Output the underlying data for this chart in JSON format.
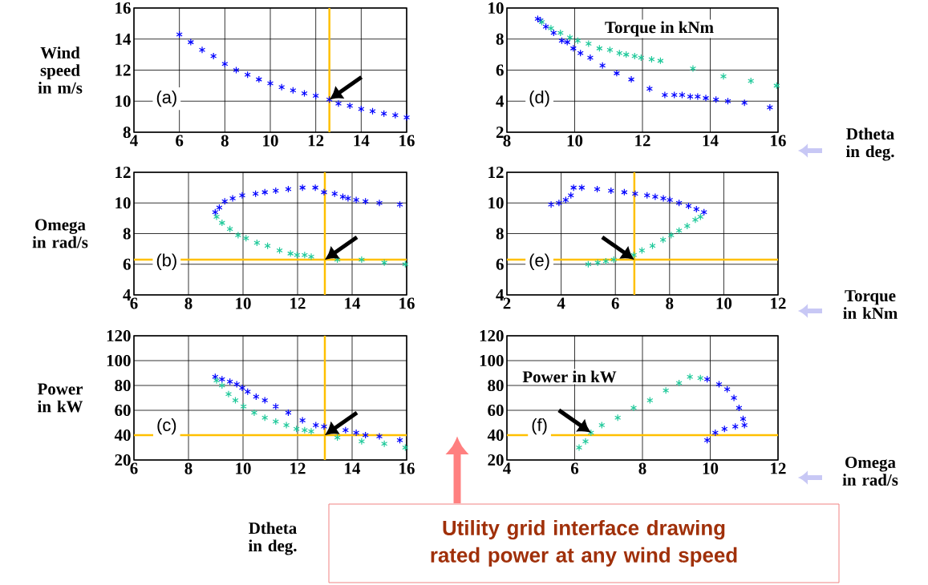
{
  "chart_data": [
    {
      "type": "scatter",
      "annotations": [
        "(a)"
      ],
      "ylabel": "Wind speed in m/s",
      "xlim": [
        4,
        16
      ],
      "ylim": [
        8,
        16
      ],
      "xticks": [
        4,
        6,
        8,
        10,
        12,
        14,
        16
      ],
      "yticks": [
        8,
        10,
        12,
        14,
        16
      ],
      "grid": true,
      "marker": "cross",
      "series": [
        {
          "color": "#0000ff",
          "x": [
            6,
            6.5,
            7,
            7.5,
            8,
            8.5,
            9,
            9.5,
            10,
            10.5,
            11,
            11.5,
            12,
            12.6,
            13,
            13.5,
            14,
            14.5,
            15,
            15.5,
            16
          ],
          "values": [
            14.3,
            13.8,
            13.3,
            12.9,
            12.4,
            12.0,
            11.7,
            11.4,
            11.15,
            10.9,
            10.7,
            10.5,
            10.35,
            10.1,
            9.85,
            9.7,
            9.5,
            9.35,
            9.2,
            9.1,
            8.95
          ]
        }
      ],
      "ref_lines": [
        {
          "axis": "x",
          "value": 12.6,
          "color": "#ffc000"
        }
      ]
    },
    {
      "type": "scatter",
      "annotations": [
        "(b)"
      ],
      "ylabel": "Omega in rad/s",
      "xlim": [
        6,
        16
      ],
      "ylim": [
        4,
        12
      ],
      "xticks": [
        6,
        8,
        10,
        12,
        14,
        16
      ],
      "yticks": [
        4,
        6,
        8,
        10,
        12
      ],
      "grid": true,
      "marker": "cross",
      "series": [
        {
          "color": "#0000ff",
          "x": [
            8.98,
            9.13,
            9.33,
            9.62,
            9.97,
            10.46,
            10.8,
            11.2,
            11.66,
            12.18,
            12.65,
            12.97,
            13.36,
            13.66,
            13.85,
            14.15,
            14.49,
            15.0,
            15.75
          ],
          "values": [
            9.4,
            9.7,
            10.1,
            10.3,
            10.5,
            10.6,
            10.7,
            10.8,
            10.9,
            11.0,
            11.0,
            10.7,
            10.6,
            10.4,
            10.3,
            10.2,
            10.1,
            10.0,
            9.9
          ]
        },
        {
          "color": "#1fc99a",
          "x": [
            9.03,
            9.23,
            9.52,
            9.82,
            10.11,
            10.51,
            10.9,
            11.34,
            11.74,
            11.98,
            12.26,
            12.5,
            13.46,
            14.35,
            15.18,
            15.95
          ],
          "values": [
            9.1,
            8.7,
            8.3,
            7.9,
            7.7,
            7.4,
            7.2,
            6.9,
            6.7,
            6.6,
            6.6,
            6.5,
            6.3,
            6.3,
            6.1,
            6.0
          ]
        }
      ],
      "ref_lines": [
        {
          "axis": "x",
          "value": 13,
          "color": "#ffc000"
        },
        {
          "axis": "y",
          "value": 6.3,
          "color": "#ffc000"
        }
      ]
    },
    {
      "type": "scatter",
      "annotations": [
        "(c)"
      ],
      "ylabel": "Power in kW",
      "xlabel": "Dtheta in deg.",
      "xlim": [
        6,
        16
      ],
      "ylim": [
        20,
        120
      ],
      "xticks": [
        6,
        8,
        10,
        12,
        14,
        16
      ],
      "yticks": [
        20,
        40,
        60,
        80,
        100,
        120
      ],
      "grid": true,
      "marker": "cross",
      "series": [
        {
          "color": "#0000ff",
          "x": [
            8.98,
            9.23,
            9.52,
            9.77,
            9.97,
            10.17,
            10.48,
            10.8,
            11.2,
            11.66,
            12.18,
            12.67,
            12.97,
            13.26,
            13.76,
            14.15,
            14.49,
            15.0,
            15.75
          ],
          "values": [
            87,
            85,
            83,
            81,
            78,
            75,
            71,
            68,
            63,
            58,
            52,
            48,
            47,
            null,
            44,
            42,
            40,
            39,
            36
          ]
        },
        {
          "color": "#1fc99a",
          "x": [
            9.03,
            9.23,
            9.47,
            9.72,
            10.02,
            10.41,
            10.8,
            11.2,
            11.59,
            11.96,
            12.26,
            12.5,
            13.46,
            14.35,
            15.18,
            15.95
          ],
          "values": [
            84,
            80,
            73,
            68,
            63,
            58,
            54,
            51,
            48,
            45,
            44,
            43,
            38,
            35,
            33,
            30
          ]
        }
      ],
      "ref_lines": [
        {
          "axis": "x",
          "value": 13,
          "color": "#ffc000"
        },
        {
          "axis": "y",
          "value": 40,
          "color": "#ffc000"
        }
      ]
    },
    {
      "type": "scatter",
      "annotations": [
        "(d)"
      ],
      "ylabel": "Torque in kNm",
      "xlabel": "Dtheta in deg.",
      "xlim": [
        8,
        16
      ],
      "ylim": [
        2,
        10
      ],
      "xticks": [
        8,
        10,
        12,
        14,
        16
      ],
      "yticks": [
        2,
        4,
        6,
        8,
        10
      ],
      "grid": true,
      "marker": "cross",
      "series": [
        {
          "color": "#0000ff",
          "x": [
            8.91,
            8.99,
            9.15,
            9.38,
            9.62,
            9.78,
            9.96,
            10.17,
            10.46,
            10.82,
            11.24,
            11.67,
            12.21,
            12.66,
            12.94,
            13.17,
            13.41,
            13.63,
            13.87,
            14.17,
            14.52,
            15.01,
            15.76
          ],
          "values": [
            9.3,
            9.2,
            8.8,
            8.4,
            7.9,
            7.8,
            7.4,
            7.1,
            6.8,
            6.3,
            5.8,
            5.4,
            4.8,
            4.4,
            4.4,
            4.4,
            4.3,
            4.3,
            4.2,
            4.1,
            4.0,
            3.9,
            3.6
          ]
        },
        {
          "color": "#1fc99a",
          "x": [
            9.03,
            9.3,
            9.58,
            9.86,
            10.09,
            10.41,
            10.73,
            11.04,
            11.32,
            11.52,
            11.77,
            11.96,
            12.27,
            12.53,
            13.49,
            14.39,
            15.2,
            15.96
          ],
          "values": [
            9.1,
            8.7,
            8.4,
            8.1,
            7.9,
            7.7,
            7.4,
            7.3,
            7.1,
            7.0,
            6.9,
            6.8,
            6.7,
            6.6,
            6.1,
            5.6,
            5.3,
            5.0
          ]
        }
      ]
    },
    {
      "type": "scatter",
      "annotations": [
        "(e)"
      ],
      "xlabel": "Torque in kNm",
      "xlim": [
        2,
        12
      ],
      "ylim": [
        4,
        12
      ],
      "xticks": [
        2,
        4,
        6,
        8,
        10,
        12
      ],
      "yticks": [
        4,
        6,
        8,
        10,
        12
      ],
      "grid": true,
      "marker": "cross",
      "series": [
        {
          "color": "#0000ff",
          "x": [
            3.63,
            3.92,
            4.17,
            4.36,
            4.46,
            4.76,
            5.33,
            5.84,
            6.33,
            6.73,
            7.17,
            7.47,
            7.77,
            8.01,
            8.35,
            8.7,
            8.99,
            9.27
          ],
          "values": [
            9.9,
            10.0,
            10.2,
            10.5,
            11.0,
            11.0,
            10.9,
            10.8,
            10.7,
            10.6,
            10.5,
            10.4,
            10.3,
            10.2,
            10.0,
            9.8,
            9.6,
            9.4
          ]
        },
        {
          "color": "#1fc99a",
          "x": [
            9.14,
            8.95,
            8.65,
            8.35,
            8.06,
            7.76,
            7.37,
            6.98,
            6.68,
            6.29,
            5.94,
            5.65,
            5.35,
            5.0
          ],
          "values": [
            9.1,
            8.9,
            8.5,
            8.2,
            7.9,
            7.6,
            7.2,
            6.9,
            6.6,
            null,
            6.3,
            6.2,
            6.1,
            6.0
          ]
        }
      ],
      "ref_lines": [
        {
          "axis": "x",
          "value": 6.7,
          "color": "#ffc000"
        },
        {
          "axis": "y",
          "value": 6.3,
          "color": "#ffc000"
        }
      ]
    },
    {
      "type": "scatter",
      "annotations": [
        "(f)",
        "Utility grid interface drawing rated power at any wind speed"
      ],
      "ylabel": "Power in kW",
      "xlabel": "Omega in rad/s",
      "xlim": [
        4,
        12
      ],
      "ylim": [
        20,
        120
      ],
      "xticks": [
        4,
        6,
        8,
        10,
        12
      ],
      "yticks": [
        20,
        40,
        60,
        80,
        100,
        120
      ],
      "grid": true,
      "marker": "cross",
      "series": [
        {
          "color": "#1fc99a",
          "x": [
            6.13,
            6.32,
            6.48,
            6.8,
            7.27,
            7.74,
            8.22,
            8.69,
            9.08,
            9.4,
            9.71
          ],
          "values": [
            30,
            35,
            42,
            48,
            54,
            62,
            68,
            76,
            82,
            87,
            86
          ]
        },
        {
          "color": "#0000ff",
          "x": [
            9.91,
            10.26,
            10.5,
            10.7,
            10.85,
            10.97,
            11.01,
            10.74,
            10.42,
            10.15,
            9.91
          ],
          "values": [
            85,
            81,
            77,
            70,
            62,
            53,
            48,
            47,
            45,
            42,
            36
          ]
        }
      ],
      "ref_lines": [
        {
          "axis": "y",
          "value": 40,
          "color": "#ffc000"
        }
      ]
    }
  ]
}
